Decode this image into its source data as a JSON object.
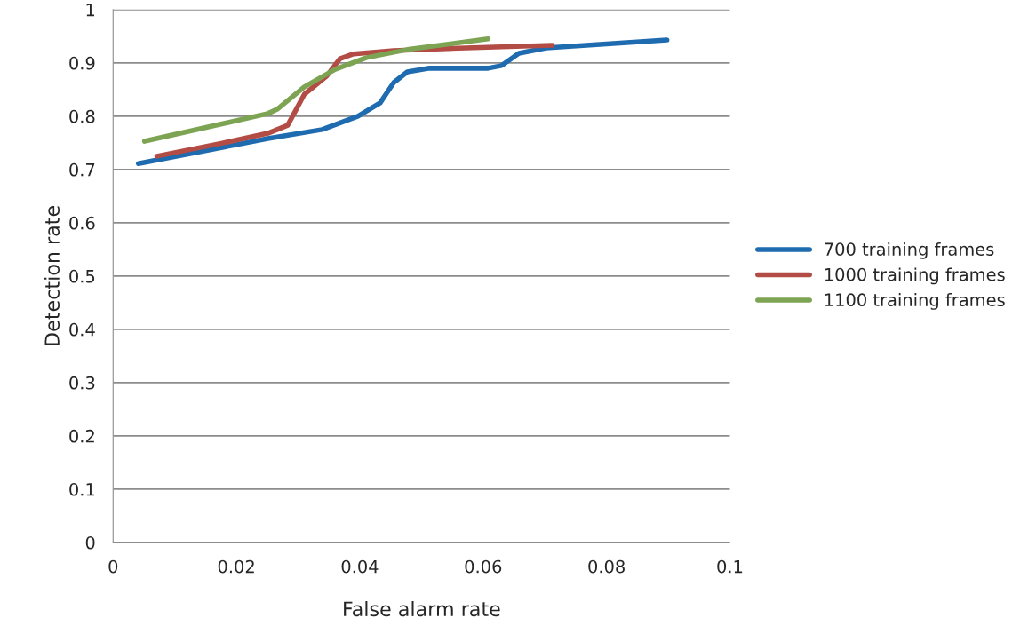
{
  "chart_data": {
    "type": "line",
    "xlabel": "False alarm rate",
    "ylabel": "Detection rate",
    "xlim": [
      0,
      0.1
    ],
    "xticks": [
      0,
      0.02,
      0.04,
      0.06,
      0.08,
      0.1
    ],
    "ylim": [
      0,
      1
    ],
    "yticks": [
      0,
      0.1,
      0.2,
      0.3,
      0.4,
      0.5,
      0.6,
      0.7,
      0.8,
      0.9,
      1
    ],
    "grid": "y",
    "legend": "right",
    "marker": "none",
    "line_style": "solid",
    "series": [
      {
        "name": "700 training frames",
        "color": "#1f6bb0",
        "x": [
          0.0041,
          0.0251,
          0.0339,
          0.0397,
          0.0433,
          0.0455,
          0.0477,
          0.0513,
          0.0608,
          0.063,
          0.0658,
          0.0702,
          0.0898
        ],
        "values": [
          0.711,
          0.758,
          0.775,
          0.8,
          0.825,
          0.863,
          0.883,
          0.89,
          0.89,
          0.895,
          0.918,
          0.928,
          0.943
        ]
      },
      {
        "name": "1000 training frames",
        "color": "#b24c45",
        "x": [
          0.0071,
          0.0179,
          0.0251,
          0.0283,
          0.0297,
          0.031,
          0.0346,
          0.0368,
          0.039,
          0.0455,
          0.0542,
          0.0712
        ],
        "values": [
          0.725,
          0.75,
          0.768,
          0.783,
          0.813,
          0.841,
          0.875,
          0.908,
          0.917,
          0.923,
          0.927,
          0.933
        ]
      },
      {
        "name": "1100 training frames",
        "color": "#7da452",
        "x": [
          0.0051,
          0.0251,
          0.0266,
          0.031,
          0.036,
          0.0411,
          0.0477,
          0.0608
        ],
        "values": [
          0.753,
          0.805,
          0.813,
          0.855,
          0.888,
          0.91,
          0.925,
          0.945
        ]
      }
    ]
  }
}
